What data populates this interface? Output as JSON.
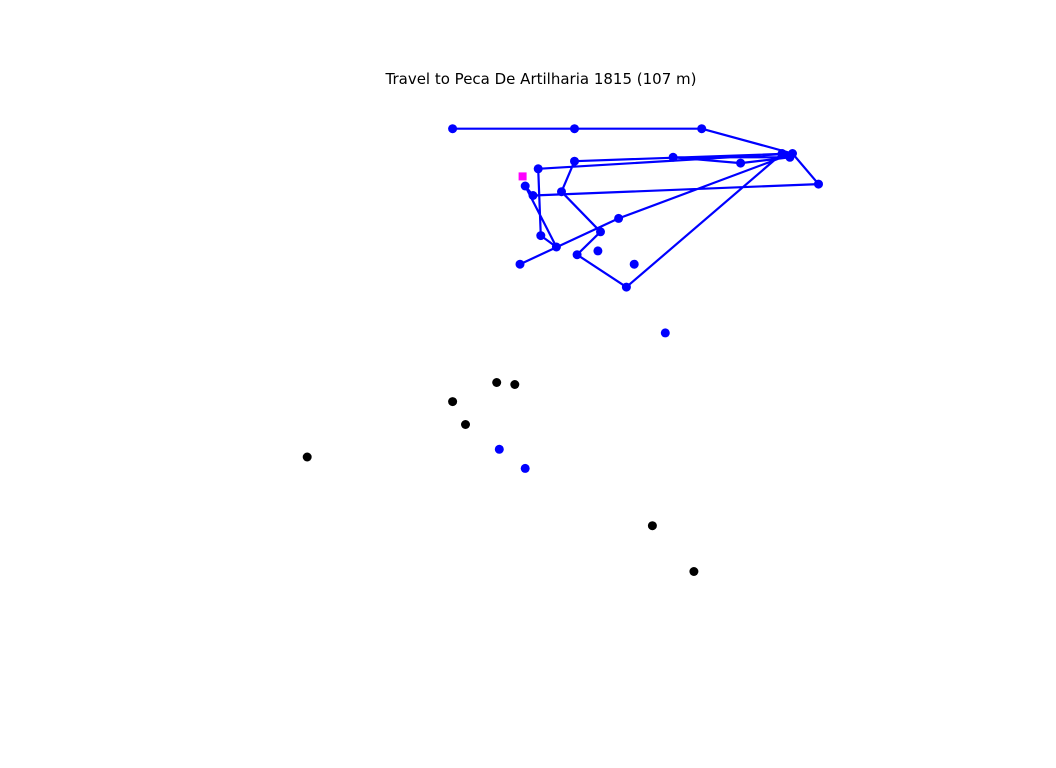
{
  "chart_data": {
    "type": "scatter",
    "title": "Travel to Peca De Artilharia 1815 (107 m)",
    "xlabel": "",
    "ylabel": "",
    "axes_visible": false,
    "grid": false,
    "colors": {
      "route": "#0000ff",
      "visited": "#0000ff",
      "unvisited": "#000000",
      "target": "#ff00ff"
    },
    "route_points": [
      {
        "x": 169,
        "y": 614
      },
      {
        "x": 216,
        "y": 614
      },
      {
        "x": 265,
        "y": 614
      },
      {
        "x": 300,
        "y": 601
      },
      {
        "x": 299,
        "y": 599
      },
      {
        "x": 280,
        "y": 596
      },
      {
        "x": 254,
        "y": 599
      },
      {
        "x": 299,
        "y": 599
      },
      {
        "x": 300,
        "y": 601
      },
      {
        "x": 310,
        "y": 585
      },
      {
        "x": 200,
        "y": 579
      },
      {
        "x": 197,
        "y": 584
      },
      {
        "x": 209,
        "y": 552
      },
      {
        "x": 203,
        "y": 558
      },
      {
        "x": 202,
        "y": 593
      },
      {
        "x": 300,
        "y": 601
      },
      {
        "x": 216,
        "y": 597
      },
      {
        "x": 211,
        "y": 581
      },
      {
        "x": 226,
        "y": 560
      },
      {
        "x": 217,
        "y": 548
      },
      {
        "x": 236,
        "y": 531
      },
      {
        "x": 296,
        "y": 601
      },
      {
        "x": 300,
        "y": 601
      },
      {
        "x": 233,
        "y": 567
      },
      {
        "x": 195,
        "y": 543
      }
    ],
    "visited_points": [
      {
        "x": 251,
        "y": 507
      },
      {
        "x": 187,
        "y": 446
      },
      {
        "x": 197,
        "y": 436
      },
      {
        "x": 239,
        "y": 543
      },
      {
        "x": 225,
        "y": 550
      }
    ],
    "unvisited_points": [
      {
        "x": 169,
        "y": 471
      },
      {
        "x": 174,
        "y": 459
      },
      {
        "x": 186,
        "y": 481
      },
      {
        "x": 193,
        "y": 480
      },
      {
        "x": 113,
        "y": 442
      },
      {
        "x": 246,
        "y": 406
      },
      {
        "x": 262,
        "y": 382
      }
    ],
    "target_point": {
      "x": 196,
      "y": 589
    },
    "xlim": [
      0,
      400
    ],
    "ylim": [
      300,
      650
    ]
  }
}
